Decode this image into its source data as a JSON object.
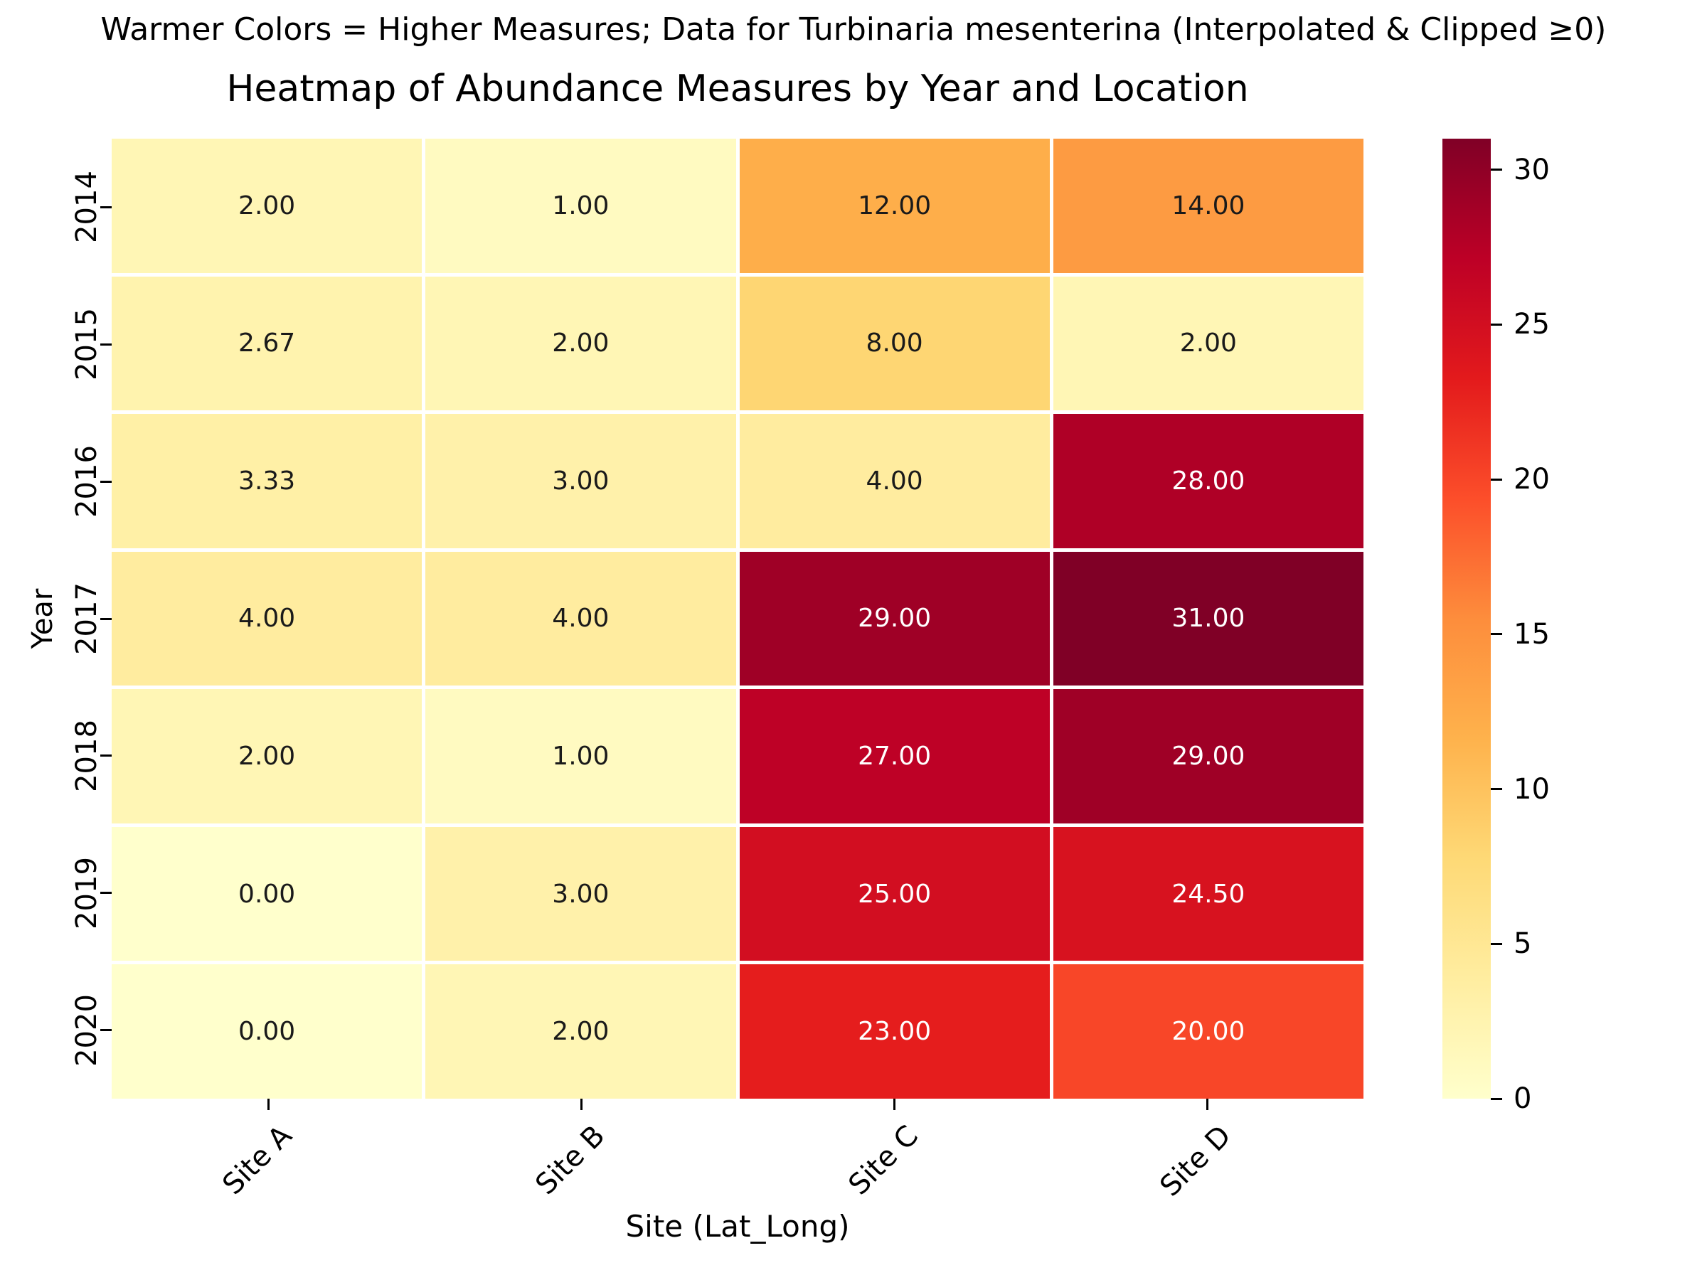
{
  "figure": {
    "suptitle": "Warmer Colors = Higher Measures; Data for Turbinaria mesenterina (Interpolated & Clipped ≥0)"
  },
  "chart_data": {
    "type": "heatmap",
    "title": "Heatmap of Abundance Measures by Year and Location",
    "xlabel": "Site (Lat_Long)",
    "ylabel": "Year",
    "rows": [
      "2014",
      "2015",
      "2016",
      "2017",
      "2018",
      "2019",
      "2020"
    ],
    "columns": [
      "Site A",
      "Site B",
      "Site C",
      "Site D"
    ],
    "values": [
      [
        2.0,
        1.0,
        12.0,
        14.0
      ],
      [
        2.67,
        2.0,
        8.0,
        2.0
      ],
      [
        3.33,
        3.0,
        4.0,
        28.0
      ],
      [
        4.0,
        4.0,
        29.0,
        31.0
      ],
      [
        2.0,
        1.0,
        27.0,
        29.0
      ],
      [
        0.0,
        3.0,
        25.0,
        24.5
      ],
      [
        0.0,
        2.0,
        23.0,
        20.0
      ]
    ],
    "value_decimals": 2,
    "vmin": 0,
    "vmax": 31,
    "colorbar_ticks": [
      0,
      5,
      10,
      15,
      20,
      25,
      30
    ],
    "colorbar_position": "right",
    "grid_line_color": "#ffffff",
    "colormap": {
      "name": "YlOrRd",
      "stops": [
        {
          "pos": 0.0,
          "color": "#ffffcc"
        },
        {
          "pos": 0.125,
          "color": "#ffeda0"
        },
        {
          "pos": 0.25,
          "color": "#fed976"
        },
        {
          "pos": 0.375,
          "color": "#feb24c"
        },
        {
          "pos": 0.5,
          "color": "#fd8d3c"
        },
        {
          "pos": 0.625,
          "color": "#fc4e2a"
        },
        {
          "pos": 0.75,
          "color": "#e31a1c"
        },
        {
          "pos": 0.875,
          "color": "#bd0026"
        },
        {
          "pos": 1.0,
          "color": "#800026"
        }
      ]
    },
    "annotation": {
      "dark_text_color": "#1a1a1a",
      "light_text_color": "#ffffff",
      "light_text_norm_threshold": 0.6
    }
  }
}
